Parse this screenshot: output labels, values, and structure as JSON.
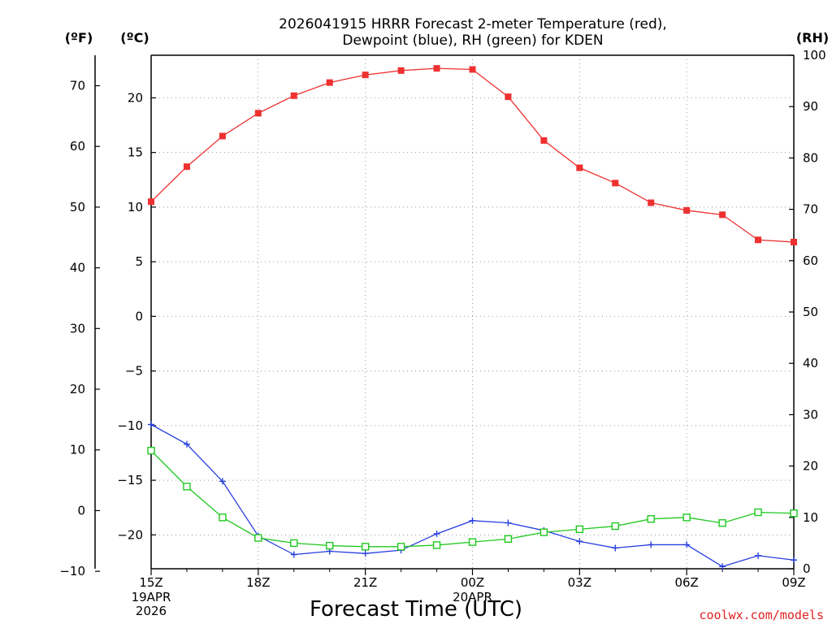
{
  "chart_data": {
    "type": "line",
    "title_line1": "2026041915 HRRR Forecast 2-meter Temperature (red),",
    "title_line2": "Dewpoint (blue), RH (green) for KDEN",
    "xlabel": "Forecast Time (UTC)",
    "credit": "coolwx.com/models",
    "axes": {
      "fahrenheit_label": "(ºF)",
      "celsius_label": "(ºC)",
      "rh_label": "(RH)",
      "celsius_ticks": [
        "20",
        "15",
        "10",
        "5",
        "0",
        "−5",
        "−10",
        "−15",
        "−20"
      ],
      "celsius_tick_values": [
        20,
        15,
        10,
        5,
        0,
        -5,
        -10,
        -15,
        -20
      ],
      "fahrenheit_ticks": [
        "70",
        "60",
        "50",
        "40",
        "30",
        "20",
        "10",
        "0",
        "−10"
      ],
      "fahrenheit_tick_values": [
        70,
        60,
        50,
        40,
        30,
        20,
        10,
        0,
        -10
      ],
      "rh_ticks": [
        "100",
        "90",
        "80",
        "70",
        "60",
        "50",
        "40",
        "30",
        "20",
        "10",
        "0"
      ],
      "rh_tick_values": [
        100,
        90,
        80,
        70,
        60,
        50,
        40,
        30,
        20,
        10,
        0
      ],
      "celsius_range": [
        -23.1,
        23.9
      ],
      "rh_range": [
        0,
        100
      ]
    },
    "x_ticks": [
      {
        "label": "15Z",
        "index": 0,
        "date1": "19APR",
        "date2": "2026"
      },
      {
        "label": "18Z",
        "index": 3
      },
      {
        "label": "21Z",
        "index": 6
      },
      {
        "label": "00Z",
        "index": 9,
        "date1": "20APR"
      },
      {
        "label": "03Z",
        "index": 12
      },
      {
        "label": "06Z",
        "index": 15
      },
      {
        "label": "09Z",
        "index": 18
      }
    ],
    "series": [
      {
        "name": "Temperature",
        "unit": "C",
        "color": "#ee3030",
        "marker": "filled-square",
        "values": [
          10.5,
          13.7,
          16.5,
          18.6,
          20.2,
          21.4,
          22.1,
          22.5,
          22.7,
          22.6,
          20.1,
          16.1,
          13.6,
          12.2,
          10.4,
          9.7,
          9.3,
          7.0,
          6.8
        ]
      },
      {
        "name": "Dewpoint",
        "unit": "C",
        "color": "#2840e0",
        "marker": "plus",
        "values": [
          -9.9,
          -11.7,
          -15.1,
          -20.1,
          -21.8,
          -21.5,
          -21.7,
          -21.4,
          -19.9,
          -18.7,
          -18.9,
          -19.6,
          -20.6,
          -21.2,
          -20.9,
          -20.9,
          -22.9,
          -21.9,
          -22.3
        ]
      },
      {
        "name": "RH",
        "unit": "%",
        "color": "#20c820",
        "marker": "open-square",
        "values": [
          23,
          16,
          10,
          6,
          5,
          4.5,
          4.3,
          4.3,
          4.6,
          5.2,
          5.8,
          7.1,
          7.7,
          8.3,
          9.7,
          10,
          8.9,
          11,
          10.8
        ]
      }
    ]
  }
}
